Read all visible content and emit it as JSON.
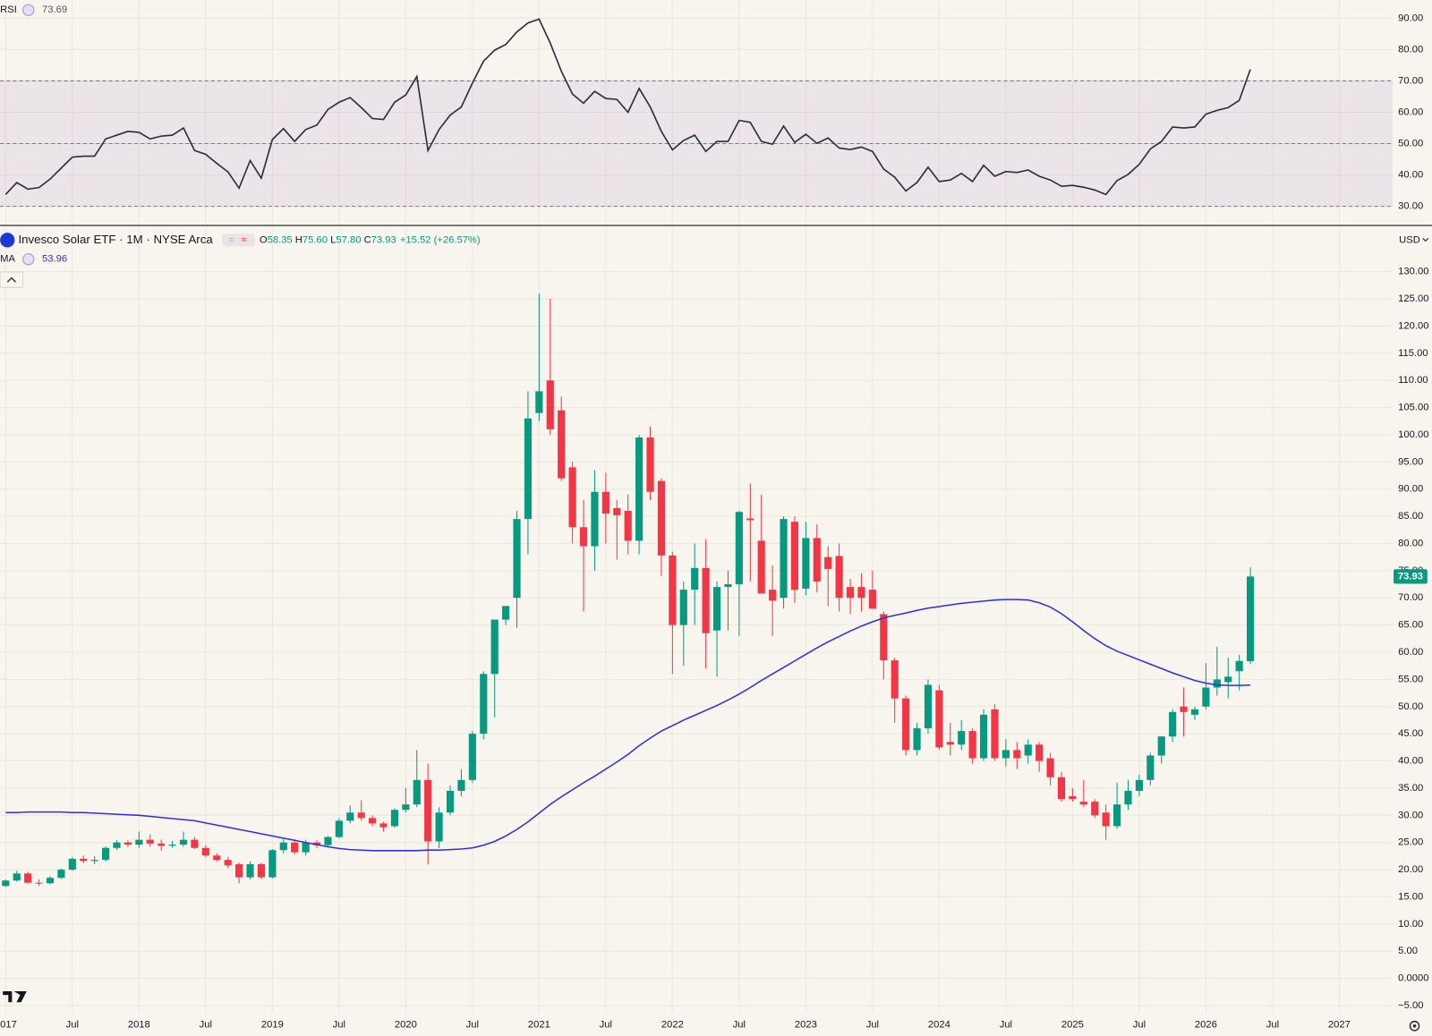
{
  "chart_data": [
    {
      "type": "line",
      "title": "RSI",
      "series": [
        {
          "color": "#2a2e39",
          "values": [
            33.8,
            37.6,
            35.5,
            36,
            38.7,
            42.2,
            45.7,
            46,
            46,
            51.5,
            52.7,
            53.9,
            53.6,
            51.5,
            52.4,
            52.7,
            55,
            47.8,
            46.6,
            43.7,
            41,
            35.8,
            44.6,
            39,
            51.3,
            54.8,
            50.7,
            54.5,
            55.9,
            60.9,
            63.2,
            64.7,
            61.5,
            58,
            57.7,
            63.2,
            65.5,
            71.4,
            47.8,
            54.5,
            59.1,
            61.7,
            69.3,
            76.3,
            79.8,
            81.6,
            85.6,
            88.5,
            89.7,
            82.1,
            73.1,
            65.8,
            62.9,
            66.7,
            64.4,
            64.1,
            60,
            67.6,
            61.7,
            53.9,
            48,
            51,
            52.7,
            47.5,
            50.7,
            50.7,
            57.4,
            56.8,
            50.7,
            49.8,
            55.6,
            50.4,
            53,
            50.1,
            51.8,
            48.6,
            48.1,
            48.9,
            47.5,
            41.9,
            39.3,
            34.9,
            37.6,
            42.5,
            37.9,
            38.4,
            40.5,
            37.9,
            43.1,
            39.6,
            41.1,
            40.8,
            41.6,
            39.6,
            38.4,
            36.4,
            36.7,
            36.1,
            35.2,
            33.8,
            38.2,
            40.2,
            43.4,
            48.3,
            50.7,
            55.3,
            55,
            55.3,
            59.4,
            60.6,
            61.5,
            63.8,
            73.69
          ]
        }
      ],
      "band": [
        30,
        70
      ],
      "band_color": "#7e57c2",
      "levels": [
        30,
        50,
        70
      ],
      "ylim": [
        24.2,
        95.8
      ],
      "yticks": [
        {
          "value": 30,
          "label": "30.00"
        },
        {
          "value": 40,
          "label": "40.00"
        },
        {
          "value": 50,
          "label": "50.00"
        },
        {
          "value": 60,
          "label": "60.00"
        },
        {
          "value": 70,
          "label": "70.00"
        },
        {
          "value": 80,
          "label": "80.00"
        },
        {
          "value": 90,
          "label": "90.00"
        }
      ],
      "grid": true
    },
    {
      "type": "candlestick",
      "title": "Invesco Solar ETF · 1M · NYSE Arca",
      "ohlc_legend": [
        {
          "label": "O",
          "value": "58.35"
        },
        {
          "label": "H",
          "value": "75.60"
        },
        {
          "label": "L",
          "value": "57.80"
        },
        {
          "label": "C",
          "value": "73.93"
        }
      ],
      "change": "+15.52 (+26.57%)",
      "currency": "USD",
      "up_color": "#089981",
      "down_color": "#f23645",
      "x": [
        0,
        1,
        2,
        3,
        4,
        5,
        6,
        7,
        8,
        9,
        10,
        11,
        12,
        13,
        14,
        15,
        16,
        17,
        18,
        19,
        20,
        21,
        22,
        23,
        24,
        25,
        26,
        27,
        28,
        29,
        30,
        31,
        32,
        33,
        34,
        35,
        36,
        37,
        38,
        39,
        40,
        41,
        42,
        43,
        44,
        45,
        46,
        47,
        48,
        49,
        50,
        51,
        52,
        53,
        54,
        55,
        56,
        57,
        58,
        59,
        60,
        61,
        62,
        63,
        64,
        65,
        66,
        67,
        68,
        69,
        70,
        71,
        72,
        73,
        74,
        75,
        76,
        77,
        78,
        79,
        80,
        81,
        82,
        83,
        84,
        85,
        86,
        87,
        88,
        89,
        90,
        91,
        92,
        93,
        94,
        95,
        96,
        97,
        98,
        99,
        100,
        101,
        102,
        103,
        104,
        105,
        106,
        107,
        108,
        109,
        110,
        111,
        112
      ],
      "open": [
        17,
        18,
        19.3,
        17.6,
        17.5,
        18.5,
        20,
        22,
        21.6,
        21.8,
        24,
        25,
        24.6,
        25.5,
        24.8,
        24.4,
        24.6,
        25.5,
        24,
        22.6,
        21.8,
        21,
        18.6,
        21,
        18.6,
        23.6,
        25,
        23.2,
        25,
        24.5,
        26,
        29,
        30.5,
        29.5,
        28.5,
        28,
        31,
        32,
        36.5,
        25.2,
        30.5,
        34.5,
        36.5,
        45,
        56,
        66,
        70,
        84.5,
        104,
        110,
        104.5,
        94,
        83,
        79.5,
        89.5,
        86.5,
        86,
        80.5,
        99.5,
        91.5,
        77.8,
        65,
        71.5,
        75.5,
        64,
        72,
        72.5,
        84.6,
        80.5,
        71.5,
        70,
        84,
        71.7,
        81,
        77.5,
        77.7,
        72,
        72,
        71.5,
        67,
        58.5,
        51.5,
        42,
        46,
        53,
        43.5,
        43,
        45.5,
        40.5,
        49.5,
        40.5,
        42,
        41,
        43,
        40.5,
        37,
        33.5,
        32.5,
        32.5,
        30.5,
        28,
        32,
        34.5,
        36.5,
        41,
        44.5,
        50,
        48.5,
        50,
        53.5,
        54.5,
        56.5,
        58.35
      ],
      "high": [
        18.2,
        19.8,
        19.6,
        18.2,
        18.8,
        20.2,
        22.3,
        22.6,
        22.5,
        24.3,
        25.4,
        25.4,
        27,
        26.5,
        25.5,
        25.3,
        27,
        26,
        24.5,
        23,
        22.3,
        21.3,
        21.5,
        21.3,
        23.8,
        25.6,
        25.6,
        25.5,
        25.4,
        26.2,
        29.5,
        31.8,
        32.8,
        30,
        28.8,
        31.3,
        35,
        42,
        39.5,
        31.5,
        35.5,
        38.5,
        45.5,
        56.5,
        66,
        68.5,
        86,
        108,
        126,
        125,
        107,
        95,
        88,
        93.5,
        93,
        88,
        89,
        100,
        101.5,
        92,
        78.5,
        73,
        80,
        80.8,
        73,
        75,
        86,
        91,
        89,
        76,
        85,
        85,
        84,
        83.5,
        79.5,
        80,
        73.5,
        74.5,
        75,
        67.5,
        59,
        52,
        47,
        55,
        54,
        47,
        47.5,
        46,
        49.5,
        50.5,
        44,
        43.5,
        44,
        43.5,
        41.5,
        38,
        35,
        36.5,
        33,
        32,
        36,
        36.5,
        37.5,
        41.5,
        44.5,
        49.5,
        53.5,
        50,
        58,
        61,
        59,
        59.5,
        75.6
      ],
      "low": [
        16.8,
        17.8,
        17.5,
        17,
        17.3,
        18.3,
        19.8,
        21.2,
        21,
        21.5,
        23.6,
        24.2,
        24,
        24.2,
        23.5,
        24,
        24.2,
        23.8,
        22.3,
        21.5,
        20.3,
        17.5,
        18.2,
        18.3,
        18.4,
        23,
        22.8,
        22.6,
        24,
        24.2,
        25.8,
        28.5,
        29,
        28,
        27,
        27.7,
        30.5,
        31.5,
        21,
        24,
        30,
        33.5,
        36,
        44,
        48,
        65,
        64.5,
        78,
        102.5,
        100,
        91.5,
        80,
        67.5,
        75,
        80,
        77,
        78,
        78,
        88,
        74,
        56,
        57.5,
        65,
        57,
        55.5,
        64,
        63,
        73,
        71,
        63,
        68,
        69,
        70.5,
        71,
        68.5,
        67.5,
        67,
        67.5,
        68,
        55,
        47,
        41,
        41,
        45,
        42,
        41,
        42,
        39.5,
        40,
        40,
        39,
        38.5,
        39.5,
        38,
        35.5,
        32.5,
        32.5,
        31.5,
        29.5,
        25.5,
        27.5,
        31,
        33.5,
        35.5,
        39.5,
        43.5,
        44.5,
        47.5,
        49.5,
        52,
        51.5,
        53,
        57.8
      ],
      "close": [
        18,
        19.3,
        17.6,
        17.5,
        18.5,
        20,
        22,
        21.6,
        21.8,
        24,
        25,
        24.6,
        25.5,
        24.8,
        24.4,
        24.6,
        25.5,
        24,
        22.6,
        21.8,
        20.8,
        18.6,
        21,
        18.6,
        23.6,
        25,
        23.2,
        25,
        24.5,
        26,
        29,
        30.5,
        29.5,
        28.5,
        27.8,
        31,
        32,
        36.5,
        25.2,
        30.5,
        34.5,
        36.5,
        45,
        56,
        66,
        68.5,
        84.5,
        103,
        108,
        101,
        92,
        83,
        79.5,
        89.5,
        85.5,
        85.2,
        80.5,
        99.5,
        89.5,
        77.8,
        65,
        71.5,
        75.5,
        63.5,
        72,
        72.5,
        85.8,
        84.3,
        70.8,
        69.5,
        84.5,
        71.5,
        81,
        73,
        75.3,
        70,
        70,
        70,
        68,
        58.5,
        51.5,
        42,
        46,
        54,
        42.5,
        43,
        45.5,
        40.5,
        48.5,
        40.5,
        42,
        40.5,
        43,
        40,
        37,
        33,
        33,
        32,
        30,
        28,
        32,
        34.5,
        36.5,
        41,
        44.5,
        49,
        49,
        49.5,
        53.5,
        55,
        55.5,
        58.4,
        73.93
      ],
      "overlay": {
        "name": "MA",
        "color": "#2f2fe0",
        "values": [
          30.5,
          30.5,
          30.6,
          30.6,
          30.6,
          30.6,
          30.5,
          30.5,
          30.4,
          30.3,
          30.2,
          30.1,
          30,
          29.8,
          29.6,
          29.4,
          29.2,
          29,
          28.6,
          28.2,
          27.8,
          27.4,
          27,
          26.6,
          26.2,
          25.8,
          25.4,
          25,
          24.6,
          24.2,
          23.9,
          23.7,
          23.6,
          23.5,
          23.5,
          23.5,
          23.5,
          23.5,
          23.6,
          23.6,
          23.7,
          23.8,
          24,
          24.5,
          25.2,
          26.2,
          27.4,
          28.8,
          30.4,
          32,
          33.4,
          34.7,
          36,
          37.2,
          38.5,
          39.8,
          41.2,
          42.8,
          44.2,
          45.5,
          46.5,
          47.5,
          48.4,
          49.3,
          50.2,
          51.2,
          52.3,
          53.5,
          54.8,
          56,
          57.2,
          58.4,
          59.6,
          60.8,
          61.9,
          62.9,
          63.9,
          64.8,
          65.6,
          66.3,
          66.8,
          67.2,
          67.7,
          68.1,
          68.4,
          68.7,
          69,
          69.2,
          69.4,
          69.6,
          69.7,
          69.7,
          69.6,
          69.1,
          68.3,
          67.1,
          65.6,
          64,
          62.5,
          61.2,
          60.2,
          59.4,
          58.6,
          57.8,
          57,
          56.2,
          55.5,
          54.8,
          54.3,
          54,
          53.9,
          53.9,
          53.96
        ]
      },
      "xlim": [
        -0.5,
        124.8
      ],
      "xticks": [
        {
          "value": 0,
          "label": "2017"
        },
        {
          "value": 6,
          "label": "Jul"
        },
        {
          "value": 12,
          "label": "2018"
        },
        {
          "value": 18,
          "label": "Jul"
        },
        {
          "value": 24,
          "label": "2019"
        },
        {
          "value": 30,
          "label": "Jul"
        },
        {
          "value": 36,
          "label": "2020"
        },
        {
          "value": 42,
          "label": "Jul"
        },
        {
          "value": 48,
          "label": "2021"
        },
        {
          "value": 54,
          "label": "Jul"
        },
        {
          "value": 60,
          "label": "2022"
        },
        {
          "value": 66,
          "label": "Jul"
        },
        {
          "value": 72,
          "label": "2023"
        },
        {
          "value": 78,
          "label": "Jul"
        },
        {
          "value": 84,
          "label": "2024"
        },
        {
          "value": 90,
          "label": "Jul"
        },
        {
          "value": 96,
          "label": "2025"
        },
        {
          "value": 102,
          "label": "Jul"
        },
        {
          "value": 108,
          "label": "2026"
        },
        {
          "value": 114,
          "label": "Jul"
        },
        {
          "value": 120,
          "label": "2027"
        }
      ],
      "ylim": [
        -6.4,
        138
      ],
      "yticks": [
        {
          "value": -5,
          "label": "−5.00"
        },
        {
          "value": 0,
          "label": "0.0000"
        },
        {
          "value": 5,
          "label": "5.00"
        },
        {
          "value": 10,
          "label": "10.00"
        },
        {
          "value": 15,
          "label": "15.00"
        },
        {
          "value": 20,
          "label": "20.00"
        },
        {
          "value": 25,
          "label": "25.00"
        },
        {
          "value": 30,
          "label": "30.00"
        },
        {
          "value": 35,
          "label": "35.00"
        },
        {
          "value": 40,
          "label": "40.00"
        },
        {
          "value": 45,
          "label": "45.00"
        },
        {
          "value": 50,
          "label": "50.00"
        },
        {
          "value": 55,
          "label": "55.00"
        },
        {
          "value": 60,
          "label": "60.00"
        },
        {
          "value": 65,
          "label": "65.00"
        },
        {
          "value": 70,
          "label": "70.00"
        },
        {
          "value": 75,
          "label": "75.00"
        },
        {
          "value": 80,
          "label": "80.00"
        },
        {
          "value": 85,
          "label": "85.00"
        },
        {
          "value": 90,
          "label": "90.00"
        },
        {
          "value": 95,
          "label": "95.00"
        },
        {
          "value": 100,
          "label": "100.00"
        },
        {
          "value": 105,
          "label": "105.00"
        },
        {
          "value": 110,
          "label": "110.00"
        },
        {
          "value": 115,
          "label": "115.00"
        },
        {
          "value": 120,
          "label": "120.00"
        },
        {
          "value": 125,
          "label": "125.00"
        },
        {
          "value": 130,
          "label": "130.00"
        }
      ],
      "grid": true
    }
  ]
}
